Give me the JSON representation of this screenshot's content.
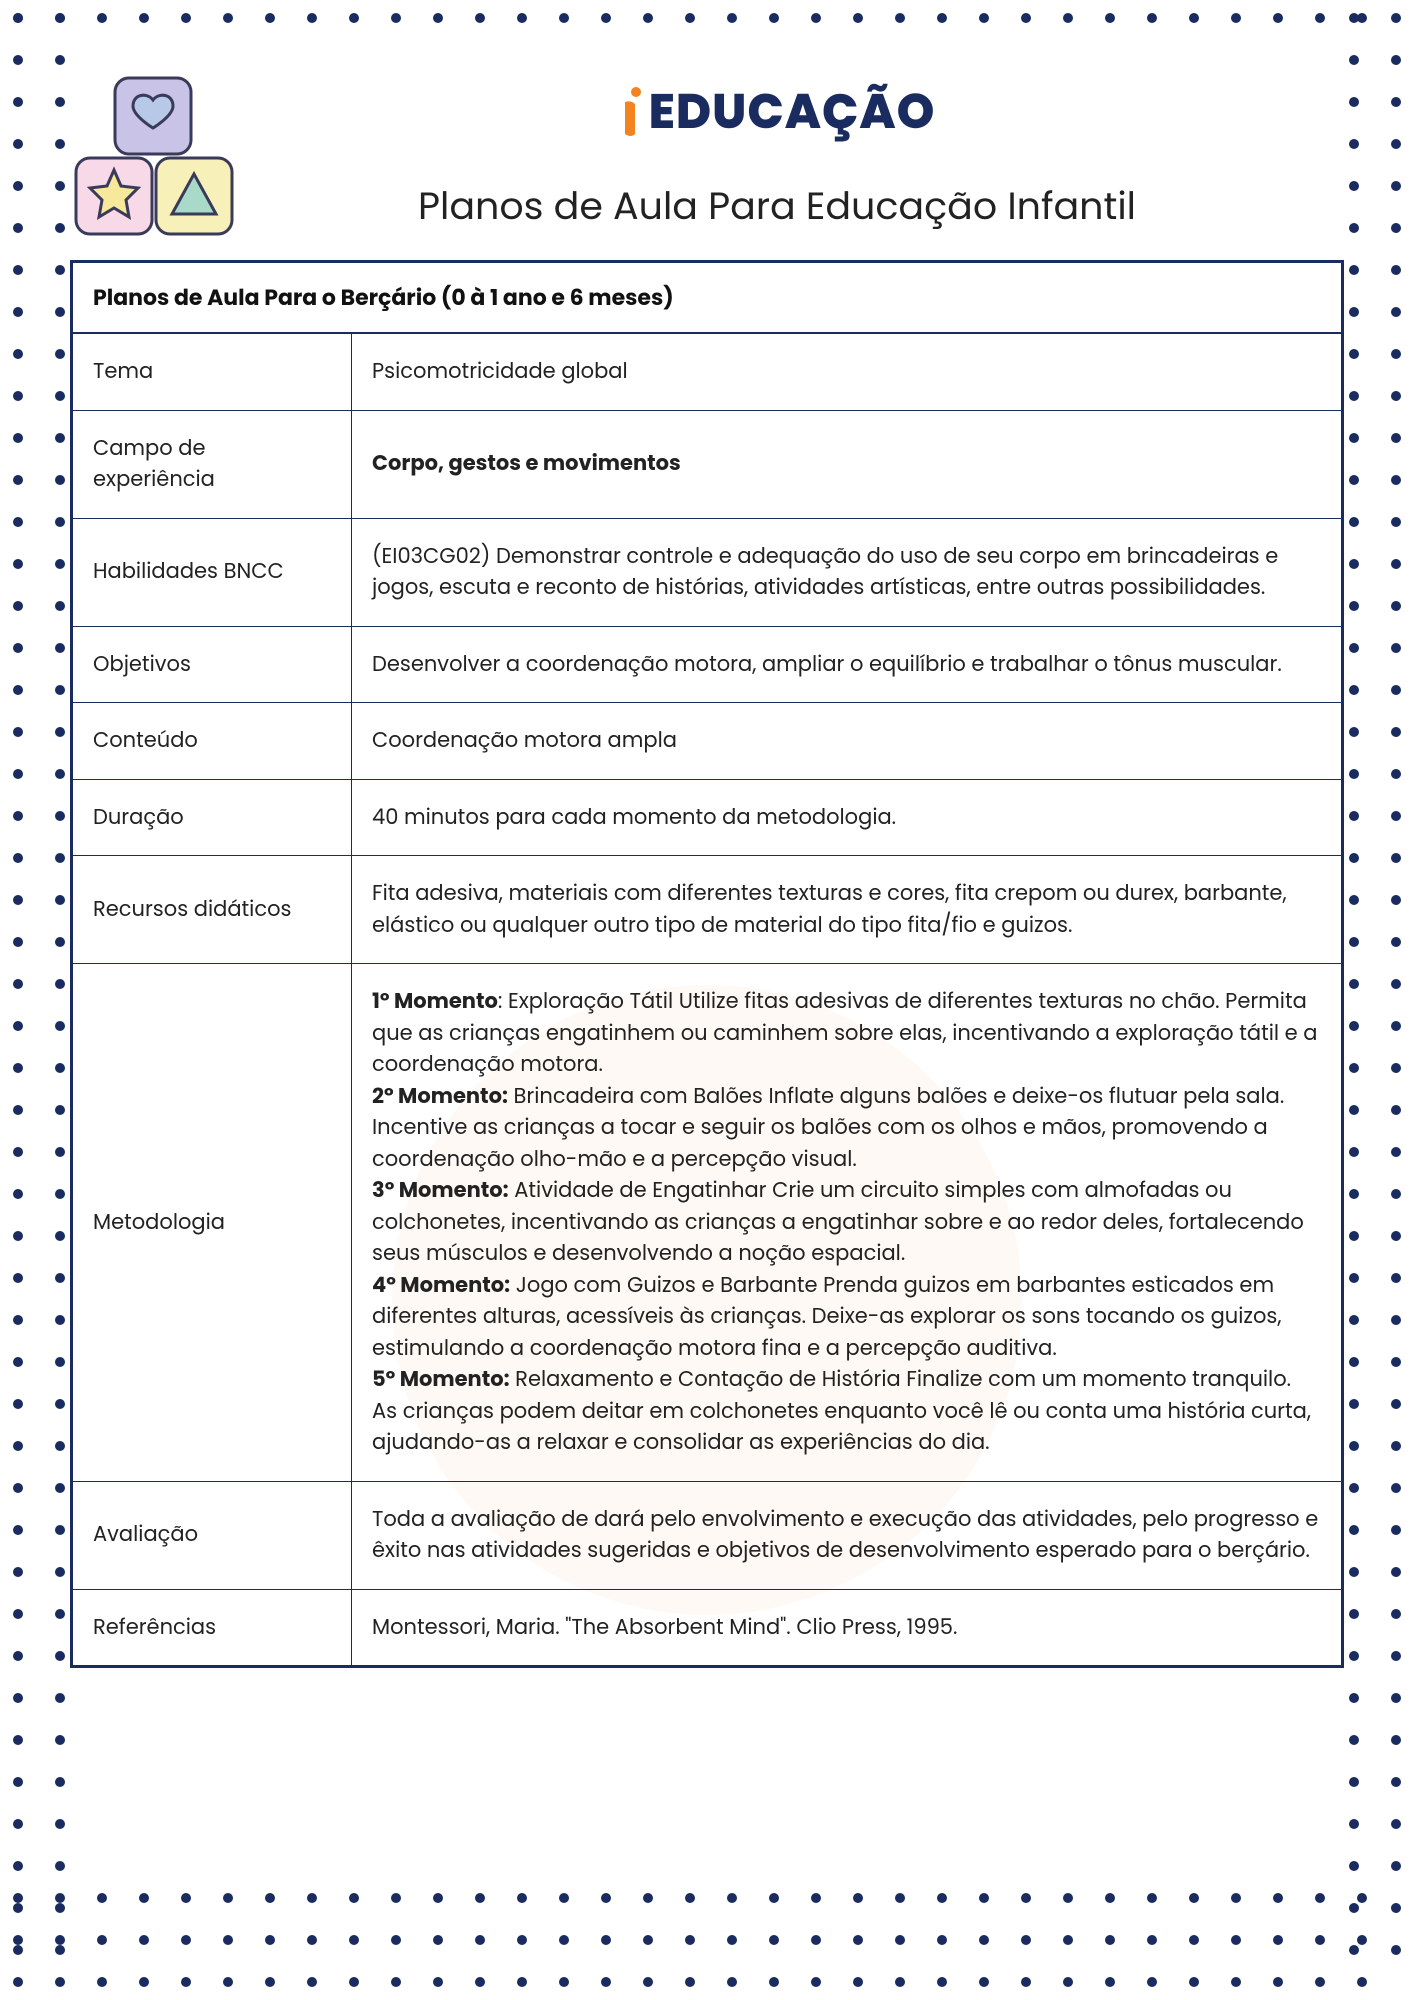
{
  "dotBorder": {
    "color": "#1a2b5f",
    "spacing": 42,
    "dotSize": 10,
    "rows_each_side": 3
  },
  "logo": {
    "accent_color": "#f58220",
    "text_color": "#1a2b5f",
    "text": "EDUCAÇÃO"
  },
  "subtitle": "Planos de Aula Para Educação Infantil",
  "table": {
    "header": "Planos de Aula Para o Berçário (0 à 1 ano e 6 meses)",
    "rows": [
      {
        "label": "Tema",
        "value": "Psicomotricidade global",
        "bold": false
      },
      {
        "label": "Campo de experiência",
        "value": "Corpo, gestos e movimentos",
        "bold": true
      },
      {
        "label": "Habilidades BNCC",
        "value": "(EI03CG02) Demonstrar controle e adequação do uso de seu corpo em brincadeiras e jogos, escuta e reconto de histórias, atividades artísticas, entre outras possibilidades.",
        "bold": false
      },
      {
        "label": "Objetivos",
        "value": "Desenvolver a coordenação motora, ampliar o equilíbrio e trabalhar o tônus muscular.",
        "bold": false
      },
      {
        "label": "Conteúdo",
        "value": "Coordenação motora ampla",
        "bold": false
      },
      {
        "label": "Duração",
        "value": "40 minutos para cada momento da metodologia.",
        "bold": false
      },
      {
        "label": "Recursos didáticos",
        "value": "Fita adesiva, materiais com diferentes texturas e cores, fita crepom ou durex, barbante, elástico ou qualquer outro tipo de material do tipo fita/fio e guizos.",
        "bold": false
      },
      {
        "label": "Metodologia",
        "methodology": true,
        "moments": [
          {
            "title": "1º Momento",
            "text": ": Exploração Tátil Utilize fitas adesivas de diferentes texturas no chão. Permita que as crianças engatinhem ou caminhem sobre elas, incentivando a exploração tátil e a coordenação motora."
          },
          {
            "title": "2º Momento:",
            "text": " Brincadeira com Balões Inflate alguns balões e deixe-os flutuar pela sala. Incentive as crianças a tocar e seguir os balões com os olhos e mãos, promovendo a coordenação olho-mão e a percepção visual."
          },
          {
            "title": "3º Momento:",
            "text": " Atividade de Engatinhar Crie um circuito simples com almofadas ou colchonetes, incentivando as crianças a engatinhar sobre e ao redor deles, fortalecendo seus músculos e desenvolvendo a noção espacial."
          },
          {
            "title": "4º Momento:",
            "text": " Jogo com Guizos e Barbante Prenda guizos em barbantes esticados em diferentes alturas, acessíveis às crianças. Deixe-as explorar os sons tocando os guizos, estimulando a coordenação motora fina e a percepção auditiva."
          },
          {
            "title": "5º Momento:",
            "text": " Relaxamento e Contação de História Finalize com um momento tranquilo. As crianças podem deitar em colchonetes enquanto você lê ou conta uma história curta, ajudando-as a relaxar e consolidar as experiências do dia."
          }
        ]
      },
      {
        "label": "Avaliação",
        "value": "Toda a avaliação de dará pelo envolvimento e execução das atividades, pelo progresso e êxito nas atividades sugeridas e objetivos de desenvolvimento esperado para o berçário.",
        "bold": false
      },
      {
        "label": "Referências",
        "value": "Montessori, Maria. \"The Absorbent Mind\". Clio Press, 1995.",
        "bold": false
      }
    ]
  },
  "blocks_icon": {
    "heart_block_fill": "#c9c3e8",
    "heart_block_stroke": "#3a3a5a",
    "heart_fill": "#b8c9e8",
    "star_block_fill": "#f7d9e8",
    "star_fill": "#f7e89a",
    "tri_block_fill": "#f7f0b8",
    "tri_fill": "#a8d9c9"
  }
}
